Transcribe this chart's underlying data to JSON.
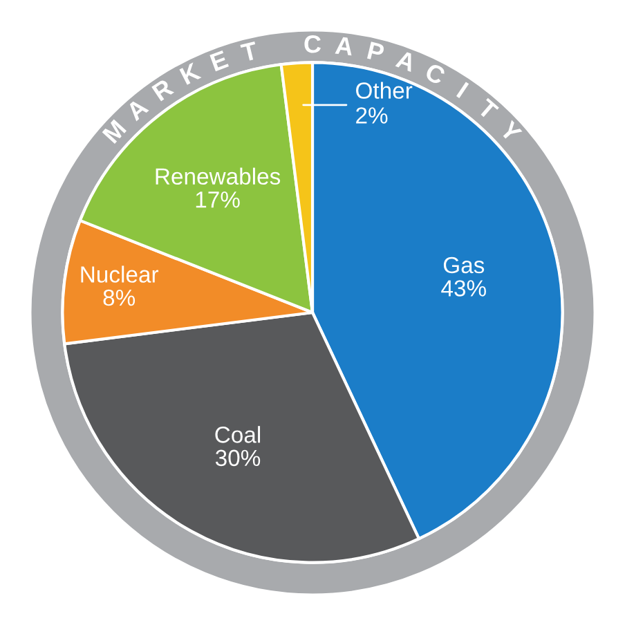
{
  "chart_data": {
    "type": "pie",
    "title": "MARKET CAPACITY",
    "categories": [
      "Gas",
      "Coal",
      "Nuclear",
      "Renewables",
      "Other"
    ],
    "values": [
      43,
      30,
      8,
      17,
      2
    ],
    "value_labels": [
      "43%",
      "30%",
      "8%",
      "17%",
      "2%"
    ],
    "colors": [
      "#1b7dc8",
      "#58595b",
      "#f28c28",
      "#8cc43f",
      "#f5c419"
    ],
    "legend": false
  }
}
